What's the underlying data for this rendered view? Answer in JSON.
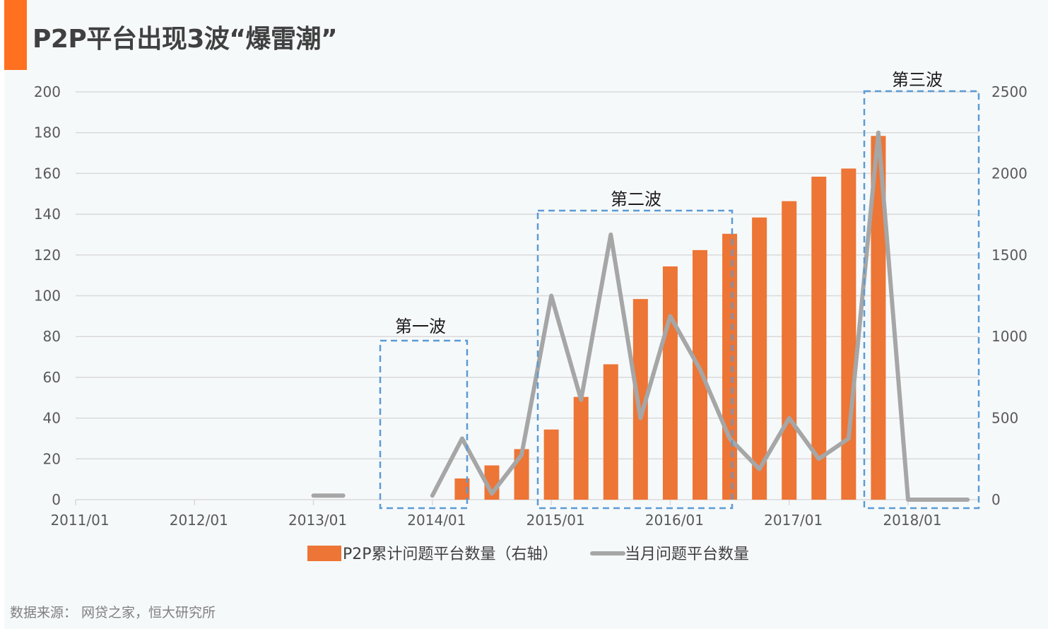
{
  "title": "P2P平台出现3波“爆雷潮”",
  "source": "数据来源： 网贷之家，恒大研究所",
  "colors": {
    "accent": "#ff7020",
    "bar": "#ed7535",
    "line": "#a6a6a6",
    "grid": "#d9d9d9",
    "wave_box": "#5b9bd5",
    "background": "#f6f9fa"
  },
  "chart_data": {
    "type": "bar",
    "x_ticks": [
      "2011/01",
      "2012/01",
      "2013/01",
      "2014/01",
      "2015/01",
      "2016/01",
      "2017/01",
      "2018/01"
    ],
    "y_left": {
      "ticks": [
        "0",
        "20",
        "40",
        "60",
        "80",
        "100",
        "120",
        "140",
        "160",
        "180",
        "200"
      ],
      "lim": [
        0,
        200
      ]
    },
    "y_right": {
      "ticks": [
        "0",
        "500",
        "1000",
        "1500",
        "2000",
        "2500"
      ],
      "lim": [
        0,
        2500
      ]
    },
    "grid": true,
    "legend_position": "bottom",
    "series": [
      {
        "name": "P2P累计问题平台数量（右轴）",
        "type": "bar",
        "axis": "right",
        "x": [
          "2013/10",
          "2014/04",
          "2014/07",
          "2014/10",
          "2015/01",
          "2015/04",
          "2015/07",
          "2015/10",
          "2016/01",
          "2016/04",
          "2016/07",
          "2016/10",
          "2017/01",
          "2017/04",
          "2017/07",
          "2017/10",
          "2018/01",
          "2018/04",
          "2018/07",
          "2018/10"
        ],
        "values": [
          0,
          130,
          210,
          310,
          430,
          630,
          830,
          1230,
          1430,
          1530,
          1630,
          1730,
          1830,
          1980,
          2030,
          2230,
          0,
          0,
          0,
          0
        ]
      },
      {
        "name": "当月问题平台数量",
        "type": "line",
        "axis": "left",
        "x": [
          "2013/01",
          "2013/04",
          "2014/01",
          "2014/04",
          "2014/07",
          "2014/10",
          "2015/01",
          "2015/04",
          "2015/07",
          "2015/10",
          "2016/01",
          "2016/04",
          "2016/07",
          "2016/10",
          "2017/01",
          "2017/04",
          "2017/07",
          "2017/10",
          "2018/01",
          "2018/04",
          "2018/07"
        ],
        "values": [
          2,
          2,
          2,
          30,
          3,
          22,
          100,
          49,
          130,
          40,
          90,
          64,
          30,
          15,
          40,
          20,
          30,
          180,
          0,
          0,
          0
        ]
      }
    ],
    "wave_labels": [
      "第一波",
      "第二波",
      "第三波"
    ]
  }
}
